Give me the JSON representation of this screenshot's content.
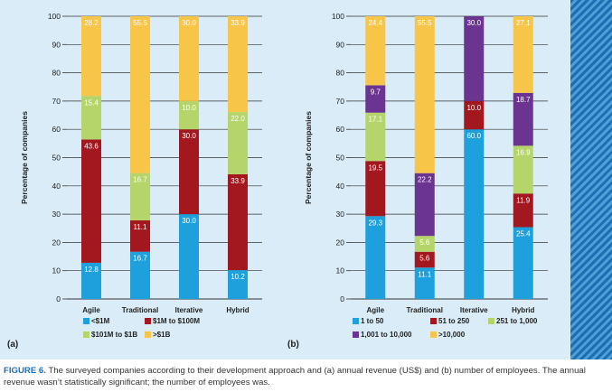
{
  "caption": {
    "label": "FIGURE 6.",
    "text": "The surveyed companies according to their development approach and (a) annual revenue (US$) and (b) number of employees. The annual revenue wasn’t statistically significant; the number of employees was."
  },
  "colors": {
    "blue": "#1ea0dc",
    "darkred": "#a3171f",
    "green": "#b5d56a",
    "yellow": "#f7c548",
    "purple": "#6b3491",
    "stripe": "#1d6fb3"
  },
  "chart_data": [
    {
      "type": "bar",
      "stacked": true,
      "panel_label": "(a)",
      "ylabel": "Percentage of companies",
      "ylim": [
        0,
        100
      ],
      "yticks": [
        0,
        10,
        20,
        30,
        40,
        50,
        60,
        70,
        80,
        90,
        100
      ],
      "categories": [
        "Agile",
        "Traditional",
        "Iterative",
        "Hybrid"
      ],
      "series": [
        {
          "name": "<$1M",
          "color": "#1ea0dc",
          "values": [
            12.8,
            16.7,
            30.0,
            10.2
          ]
        },
        {
          "name": "$1M to $100M",
          "color": "#a3171f",
          "values": [
            43.6,
            11.1,
            30.0,
            33.9
          ]
        },
        {
          "name": "$101M to $1B",
          "color": "#b5d56a",
          "values": [
            15.4,
            16.7,
            10.0,
            22.0
          ]
        },
        {
          "name": ">$1B",
          "color": "#f7c548",
          "values": [
            28.2,
            55.5,
            30.0,
            33.9
          ]
        }
      ],
      "labels": [
        [
          "12.8",
          "43.6",
          "15.4",
          "28.2"
        ],
        [
          "16.7",
          "11.1",
          "16.7",
          "55.5"
        ],
        [
          "30.0",
          "30.0",
          "10.0",
          "30.0"
        ],
        [
          "10.2",
          "33.9",
          "22.0",
          "33.9"
        ]
      ]
    },
    {
      "type": "bar",
      "stacked": true,
      "panel_label": "(b)",
      "ylabel": "Percentage of companies",
      "ylim": [
        0,
        100
      ],
      "yticks": [
        0,
        10,
        20,
        30,
        40,
        50,
        60,
        70,
        80,
        90,
        100
      ],
      "categories": [
        "Agile",
        "Traditional",
        "Iterative",
        "Hybrid"
      ],
      "series": [
        {
          "name": "1 to 50",
          "color": "#1ea0dc",
          "values": [
            29.3,
            11.1,
            60.0,
            25.4
          ]
        },
        {
          "name": "51 to 250",
          "color": "#a3171f",
          "values": [
            19.5,
            5.6,
            10.0,
            11.9
          ]
        },
        {
          "name": "251 to 1,000",
          "color": "#b5d56a",
          "values": [
            17.1,
            5.6,
            0,
            16.9
          ]
        },
        {
          "name": "1,001 to 10,000",
          "color": "#6b3491",
          "values": [
            9.7,
            22.2,
            30.0,
            18.7
          ]
        },
        {
          "name": ">10,000",
          "color": "#f7c548",
          "values": [
            24.4,
            55.5,
            0,
            27.1
          ]
        }
      ],
      "labels": [
        [
          "29.3",
          "19.5",
          "17.1",
          "9.7",
          "24.4"
        ],
        [
          "11.1",
          "5.6",
          "5.6",
          "22.2",
          "55.5"
        ],
        [
          "60.0",
          "10.0",
          "",
          "30.0",
          ""
        ],
        [
          "25.4",
          "11.9",
          "16.9",
          "18.7",
          "27.1"
        ]
      ]
    }
  ]
}
